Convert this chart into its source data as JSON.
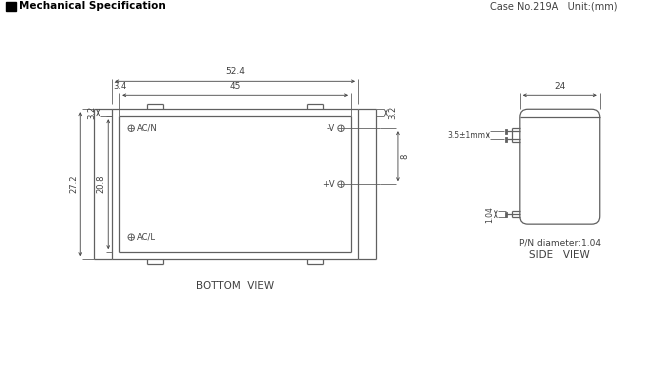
{
  "title": "Mechanical Specification",
  "case_info": "Case No.219A   Unit:(mm)",
  "bottom_view_label": "BOTTOM  VIEW",
  "side_view_label": "SIDE   VIEW",
  "pin_diameter_label": "P/N diameter:1.04",
  "dim_52_4": "52.4",
  "dim_45": "45",
  "dim_34": "3.4",
  "dim_272": "27.2",
  "dim_208": "20.8",
  "dim_32_left": "3.2",
  "dim_32_right": "3.2",
  "dim_8": "8",
  "dim_24": "24",
  "dim_35_1mm": "3.5±1mm",
  "dim_104": "1.04",
  "label_acn": "AC/N",
  "label_acl": "AC/L",
  "label_neg_v": "-V",
  "label_pos_v": "+V",
  "line_color": "#606060",
  "bg_color": "#ffffff",
  "text_color": "#404040"
}
